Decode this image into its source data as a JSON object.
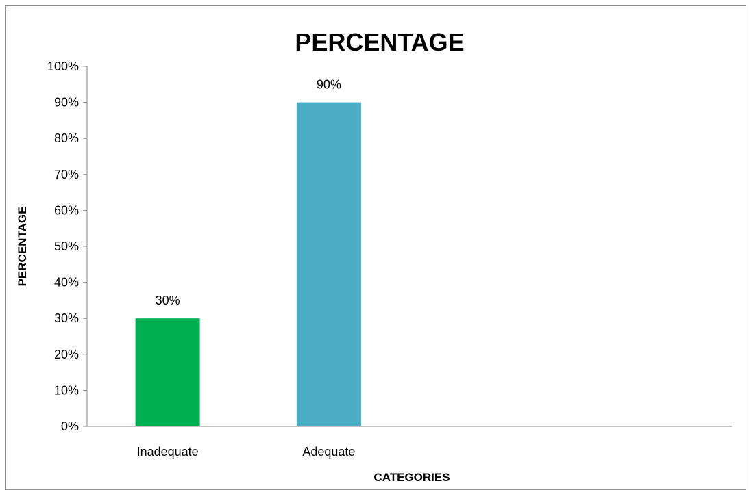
{
  "chart_data": {
    "type": "bar",
    "title": "PERCENTAGE",
    "xlabel": "CATEGORIES",
    "ylabel": "PERCENTAGE",
    "categories": [
      "Inadequate",
      "Adequate"
    ],
    "values": [
      30,
      90
    ],
    "data_labels": [
      "30%",
      "90%"
    ],
    "ylim": [
      0,
      100
    ],
    "yticks": [
      0,
      10,
      20,
      30,
      40,
      50,
      60,
      70,
      80,
      90,
      100
    ],
    "ytick_labels": [
      "0%",
      "10%",
      "20%",
      "30%",
      "40%",
      "50%",
      "60%",
      "70%",
      "80%",
      "90%",
      "100%"
    ],
    "colors": [
      "#00b050",
      "#4bacc6"
    ],
    "grid": false,
    "legend": "none"
  }
}
